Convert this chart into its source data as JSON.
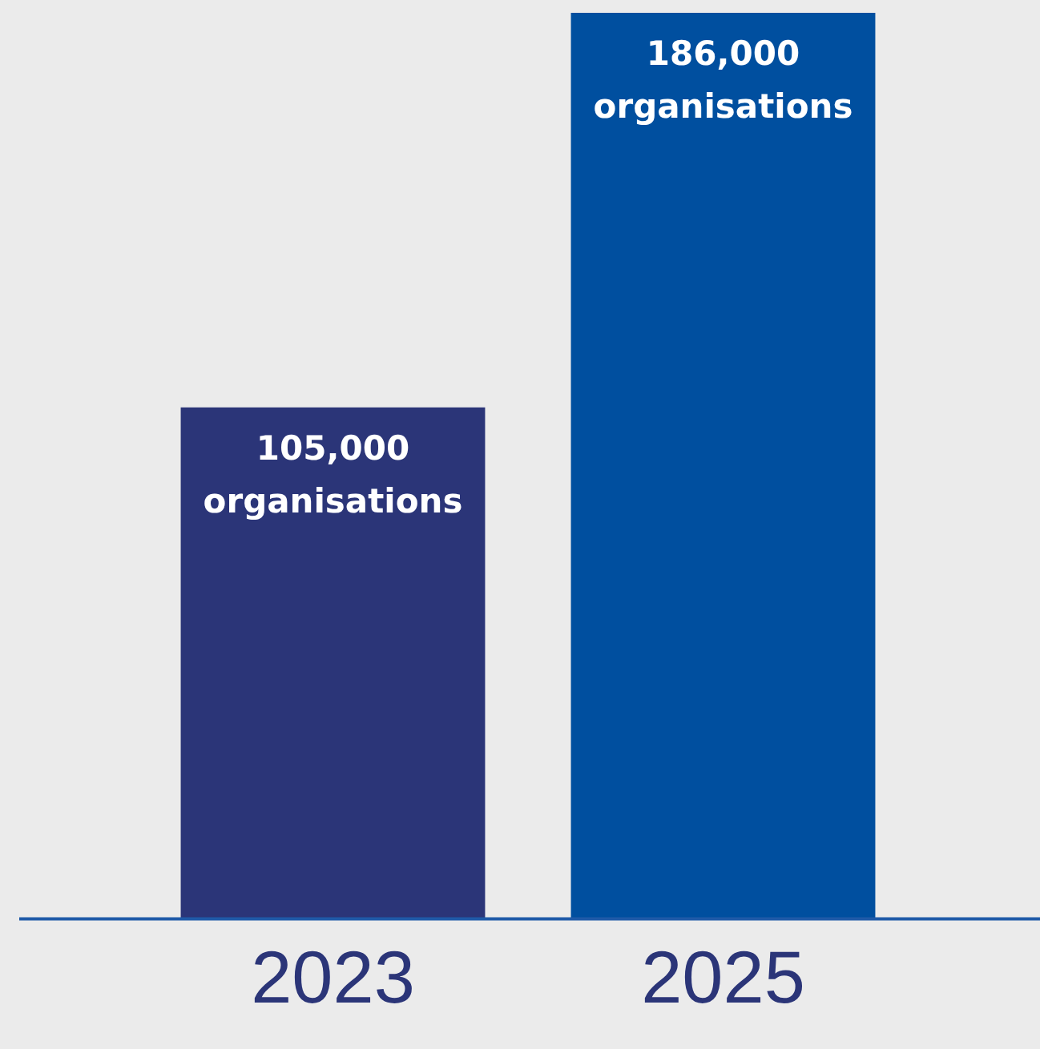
{
  "chart_data": {
    "type": "bar",
    "categories": [
      "2023",
      "2025"
    ],
    "values": [
      105000,
      186000
    ],
    "colors": [
      "#2b3578",
      "#004f9f"
    ],
    "value_labels": [
      "105,000 organisations",
      "186,000 organisations"
    ],
    "ylim": [
      0,
      186000
    ],
    "grid": false,
    "legend": false,
    "tick_labels": "x"
  }
}
